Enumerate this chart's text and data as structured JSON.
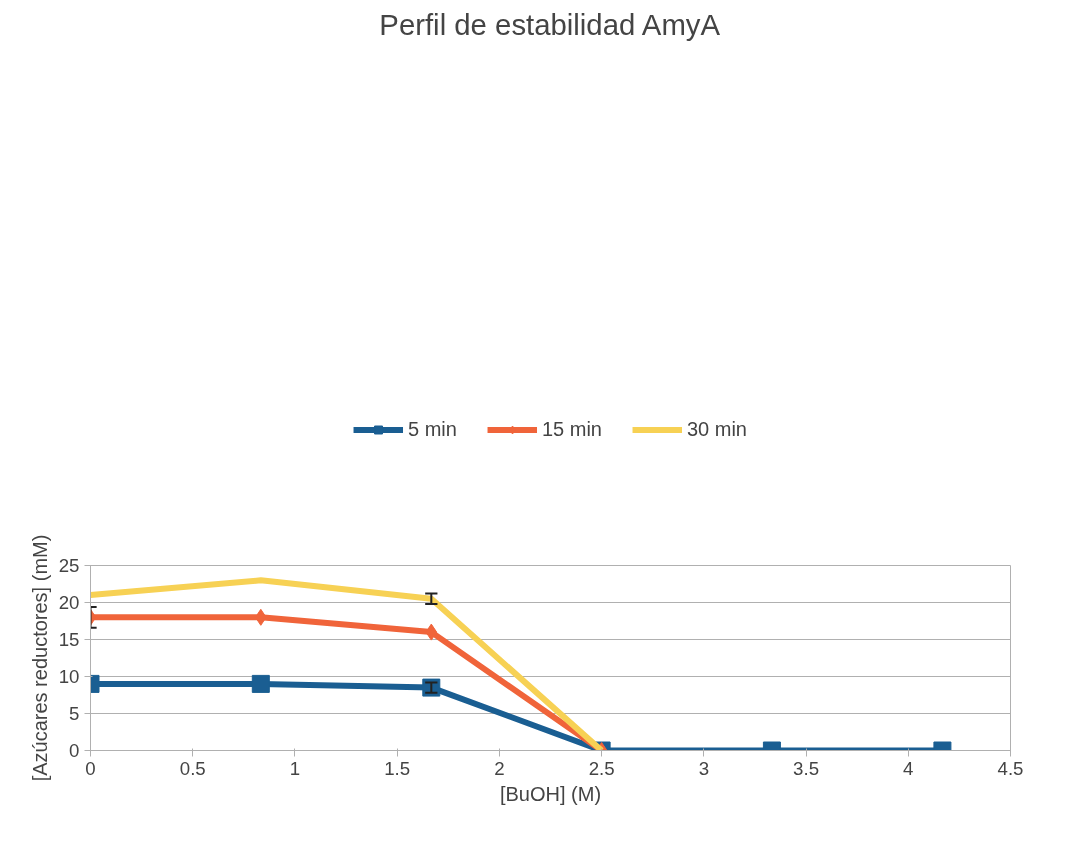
{
  "chart_data": {
    "type": "line",
    "title": "Perfil de estabilidad AmyA",
    "xlabel": "[BuOH] (M)",
    "ylabel": "[Azúcares reductores] (mM)",
    "xlim": [
      0,
      4.5
    ],
    "xticks": [
      0,
      0.5,
      1,
      1.5,
      2,
      2.5,
      3,
      3.5,
      4,
      4.5
    ],
    "ylim": [
      0,
      25
    ],
    "yticks": [
      0,
      5,
      10,
      15,
      20,
      25
    ],
    "grid": "y",
    "legend": "top",
    "series": [
      {
        "name": "5 min",
        "color": "#1a5e92",
        "marker": "square",
        "x": [
          0,
          0.833,
          1.667,
          2.5,
          3.333,
          4.167
        ],
        "values": [
          9,
          9,
          8.5,
          0,
          0,
          0
        ],
        "errors": [
          null,
          null,
          0.7,
          null,
          null,
          null
        ]
      },
      {
        "name": "15 min",
        "color": "#f0643a",
        "marker": "diamond",
        "x": [
          0,
          0.833,
          1.667,
          2.5
        ],
        "values": [
          18,
          18,
          16,
          0
        ],
        "errors": [
          1.4,
          null,
          null,
          null
        ]
      },
      {
        "name": "30 min",
        "color": "#f7d154",
        "marker": "none",
        "x": [
          0,
          0.833,
          1.667,
          2.5
        ],
        "values": [
          21,
          23,
          20.5,
          0
        ],
        "errors": [
          null,
          null,
          0.7,
          null
        ]
      }
    ]
  }
}
